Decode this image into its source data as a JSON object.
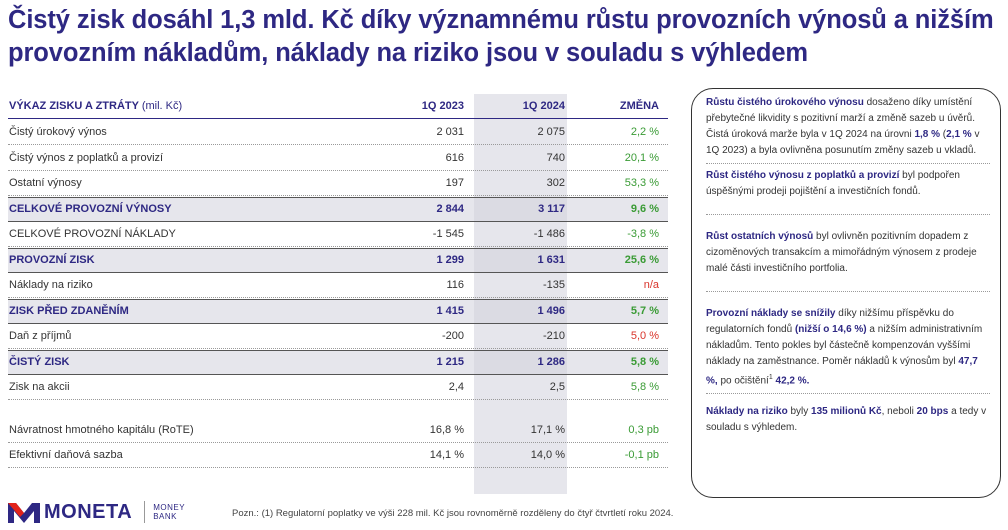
{
  "headline": "Čistý zisk dosáhl 1,3 mld. Kč díky významnému růstu provozních výnosů a nižším provozním nákladům, náklady na riziko jsou v souladu s výhledem",
  "table": {
    "header": {
      "label": "VÝKAZ ZISKU A ZTRÁTY",
      "unit": "(mil. Kč)",
      "col1": "1Q 2023",
      "col2": "1Q 2024",
      "col3": "ZMĚNA"
    },
    "rows": [
      {
        "label": "Čistý úrokový výnos",
        "v1": "2 031",
        "v2": "2 075",
        "chg": "2,2 %",
        "chg_color": "green",
        "style": "normal"
      },
      {
        "label": "Čistý výnos z poplatků a provizí",
        "v1": "616",
        "v2": "740",
        "chg": "20,1 %",
        "chg_color": "green",
        "style": "normal"
      },
      {
        "label": "Ostatní výnosy",
        "v1": "197",
        "v2": "302",
        "chg": "53,3 %",
        "chg_color": "green",
        "style": "normal"
      },
      {
        "label": "CELKOVÉ PROVOZNÍ VÝNOSY",
        "v1": "2 844",
        "v2": "3 117",
        "chg": "9,6 %",
        "chg_color": "green",
        "style": "bold"
      },
      {
        "label": "CELKOVÉ PROVOZNÍ NÁKLADY",
        "v1": "-1 545",
        "v2": "-1 486",
        "chg": "-3,8 %",
        "chg_color": "green",
        "style": "normal"
      },
      {
        "label": "PROVOZNÍ ZISK",
        "v1": "1 299",
        "v2": "1 631",
        "chg": "25,6 %",
        "chg_color": "green",
        "style": "bold"
      },
      {
        "label": "Náklady na riziko",
        "v1": "116",
        "v2": "-135",
        "chg": "n/a",
        "chg_color": "red",
        "style": "normal"
      },
      {
        "label": "ZISK PŘED ZDANĚNÍM",
        "v1": "1 415",
        "v2": "1 496",
        "chg": "5,7 %",
        "chg_color": "green",
        "style": "bold"
      },
      {
        "label": "Daň z příjmů",
        "v1": "-200",
        "v2": "-210",
        "chg": "5,0 %",
        "chg_color": "red",
        "style": "normal"
      },
      {
        "label": "ČISTÝ ZISK",
        "v1": "1 215",
        "v2": "1 286",
        "chg": "5,8 %",
        "chg_color": "green",
        "style": "bold"
      },
      {
        "label": "Zisk na akcii",
        "v1": "2,4",
        "v2": "2,5",
        "chg": "5,8 %",
        "chg_color": "green",
        "style": "normal"
      }
    ],
    "ratios": [
      {
        "label": "Návratnost hmotného kapitálu (RoTE)",
        "v1": "16,8 %",
        "v2": "17,1 %",
        "chg": "0,3 pb",
        "chg_color": "green"
      },
      {
        "label": "Efektivní daňová sazba",
        "v1": "14,1 %",
        "v2": "14,0 %",
        "chg": "-0,1 pb",
        "chg_color": "green"
      }
    ]
  },
  "panel": {
    "p1": {
      "b1": "Růstu čistého úrokového výnosu",
      "t1": " dosaženo díky umístění přebytečné likvidity s pozitivní marží a změně sazeb u úvěrů. Čistá úroková marže byla v 1Q 2024 na úrovni ",
      "b2": "1,8 %",
      "t2": " (",
      "b3": "2,1 %",
      "t3": " v 1Q 2023) a byla ovlivněna posunutím změny sazeb u vkladů."
    },
    "p2": {
      "b1": "Růst čistého výnosu z poplatků a provizí",
      "t1": " byl podpořen úspěšnými prodeji pojištění a investičních fondů."
    },
    "p3": {
      "b1": "Růst ostatních výnosů",
      "t1": "  byl ovlivněn pozitivním dopadem z cizoměnových transakcím a mimořádným výnosem z prodeje malé části investičního portfolia."
    },
    "p4": {
      "b1": "Provozní náklady se snížily",
      "t1": " díky nižšímu příspěvku do regulatorních fondů ",
      "b2": "(nižší o 14,6 %)",
      "t2": " a nižším administrativním  nákladům. Tento pokles byl částečně kompenzován vyššími náklady na zaměstnance. Poměr nákladů k výnosům byl ",
      "b3": "47,7 %,",
      "t3": " po očištění",
      "sup": "1",
      "b4": " 42,2 %."
    },
    "p5": {
      "b1": "Náklady na riziko",
      "t1": " byly ",
      "b2": "135 milionů Kč",
      "t2": ", neboli ",
      "b3": "20 bps",
      "t3": "  a tedy v souladu s výhledem."
    }
  },
  "footer": {
    "logo_text": "MONETA",
    "logo_sub1": "MONEY",
    "logo_sub2": "BANK",
    "footnote": "Pozn.: (1) Regulatorní poplatky ve výši 228 mil. Kč jsou rovnoměrně rozděleny do čtyř čtvrtletí roku 2024."
  },
  "colors": {
    "brand": "#2e2883",
    "positive": "#3a9b35",
    "negative": "#d9342b",
    "highlight_col": "#e6e6ec"
  }
}
